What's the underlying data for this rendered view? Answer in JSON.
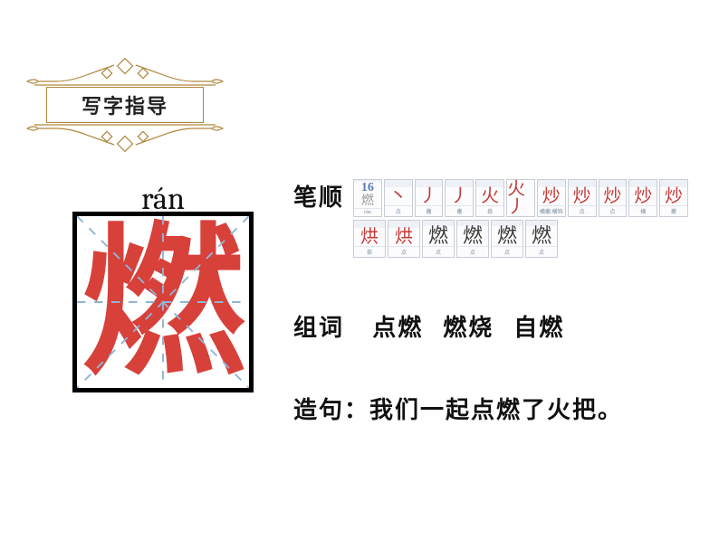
{
  "header": {
    "title": "写字指导"
  },
  "character": {
    "pinyin": "rán",
    "glyph": "燃",
    "glyph_color": "#d8403a",
    "box_border_color": "#000000",
    "guide_color": "#8fb5d6",
    "guide_dash": "5 5"
  },
  "strokes": {
    "label": "笔顺",
    "total_count": 16,
    "thumb_border": "#c7cdd6",
    "thumb_bg": "#fcfcfe",
    "cap_color": "#7a8aa0",
    "stroke_color": "#c33b37",
    "row1": [
      {
        "idx": "16",
        "tiny": "燃",
        "cap": "rán"
      },
      {
        "g": "丶",
        "cap": "点"
      },
      {
        "g": "丿",
        "cap": "撇"
      },
      {
        "g": "丿",
        "cap": "撇"
      },
      {
        "g": "火",
        "cap": "捺"
      },
      {
        "g": "火丿",
        "cap": "撇"
      },
      {
        "g": "炒",
        "cap": "横撇/横钩"
      },
      {
        "g": "炒",
        "cap": "点"
      },
      {
        "g": "炒",
        "cap": "点"
      },
      {
        "g": "炒",
        "cap": "横"
      },
      {
        "g": "炒",
        "cap": "撇"
      }
    ],
    "row2": [
      {
        "g": "烘",
        "cap": "捺"
      },
      {
        "g": "烘",
        "cap": "点"
      },
      {
        "g": "燃",
        "cap": "点"
      },
      {
        "g": "燃",
        "cap": "点"
      },
      {
        "g": "燃",
        "cap": "点"
      },
      {
        "g": "燃",
        "cap": "点"
      }
    ]
  },
  "words": {
    "label": "组词",
    "items": [
      "点燃",
      "燃烧",
      "自燃"
    ]
  },
  "sentence": {
    "label": "造句：",
    "text": "我们一起点燃了火把。"
  },
  "style": {
    "body_font": "Microsoft YaHei",
    "header_border": "#b0863c",
    "label_fontsize": 26,
    "pinyin_fontsize": 34,
    "bigchar_fontsize": 180
  }
}
